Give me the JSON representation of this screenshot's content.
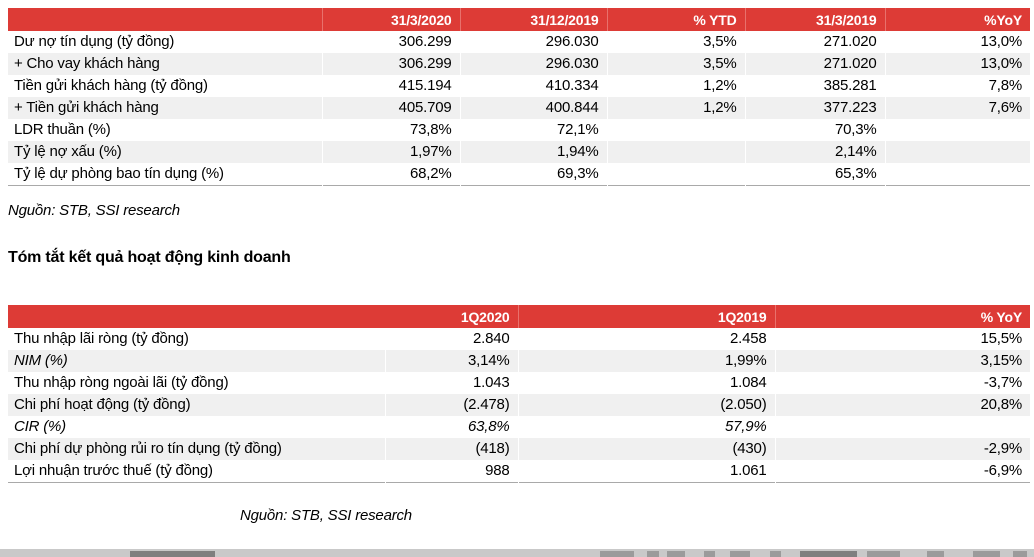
{
  "colors": {
    "header_red": "#dd3b36",
    "header_separator": "#e8716c",
    "row_alt": "#f0f0f0",
    "table_border": "#a9a9a9",
    "bottom_bar": "#c9c9c9"
  },
  "table1": {
    "columns": [
      "",
      "31/3/2020",
      "31/12/2019",
      "% YTD",
      "31/3/2019",
      "%YoY"
    ],
    "rows": [
      {
        "label": "Dư nợ tín dụng (tỷ đồng)",
        "values": [
          "306.299",
          "296.030",
          "3,5%",
          "271.020",
          "13,0%"
        ]
      },
      {
        "label": "+ Cho vay khách hàng",
        "values": [
          "306.299",
          "296.030",
          "3,5%",
          "271.020",
          "13,0%"
        ]
      },
      {
        "label": "Tiền gửi khách hàng (tỷ đồng)",
        "values": [
          "415.194",
          "410.334",
          "1,2%",
          "385.281",
          "7,8%"
        ]
      },
      {
        "label": "+ Tiền gửi khách hàng",
        "values": [
          "405.709",
          "400.844",
          "1,2%",
          "377.223",
          "7,6%"
        ]
      },
      {
        "label": "LDR thuần (%)",
        "values": [
          "73,8%",
          "72,1%",
          "",
          "70,3%",
          ""
        ]
      },
      {
        "label": "Tỷ lệ nợ xấu (%)",
        "values": [
          "1,97%",
          "1,94%",
          "",
          "2,14%",
          ""
        ]
      },
      {
        "label": "Tỷ lệ dự phòng bao tín dụng (%)",
        "values": [
          "68,2%",
          "69,3%",
          "",
          "65,3%",
          ""
        ]
      }
    ],
    "source": "Nguồn: STB, SSI research"
  },
  "section_heading": "Tóm tắt kết quả hoạt động kinh doanh",
  "table2": {
    "columns": [
      "",
      "1Q2020",
      "1Q2019",
      "% YoY"
    ],
    "rows": [
      {
        "label": "Thu nhập lãi ròng (tỷ đồng)",
        "values": [
          "2.840",
          "2.458",
          "15,5%"
        ]
      },
      {
        "label": "NIM (%)",
        "values": [
          "3,14%",
          "1,99%",
          "3,15%"
        ],
        "italic_label": true
      },
      {
        "label": "Thu nhập ròng ngoài lãi (tỷ đồng)",
        "values": [
          "1.043",
          "1.084",
          "-3,7%"
        ]
      },
      {
        "label": "Chi phí hoạt động (tỷ đồng)",
        "values": [
          "(2.478)",
          "(2.050)",
          "20,8%"
        ]
      },
      {
        "label": "CIR (%)",
        "values": [
          "63,8%",
          "57,9%",
          ""
        ],
        "italic_label": true,
        "italic_values": true
      },
      {
        "label": "Chi phí dự phòng rủi ro tín dụng (tỷ đồng)",
        "values": [
          "(418)",
          "(430)",
          "-2,9%"
        ]
      },
      {
        "label": "Lợi nhuận trước thuế (tỷ đồng)",
        "values": [
          "988",
          "1.061",
          "-6,9%"
        ]
      }
    ],
    "source": "Nguồn: STB, SSI research"
  }
}
